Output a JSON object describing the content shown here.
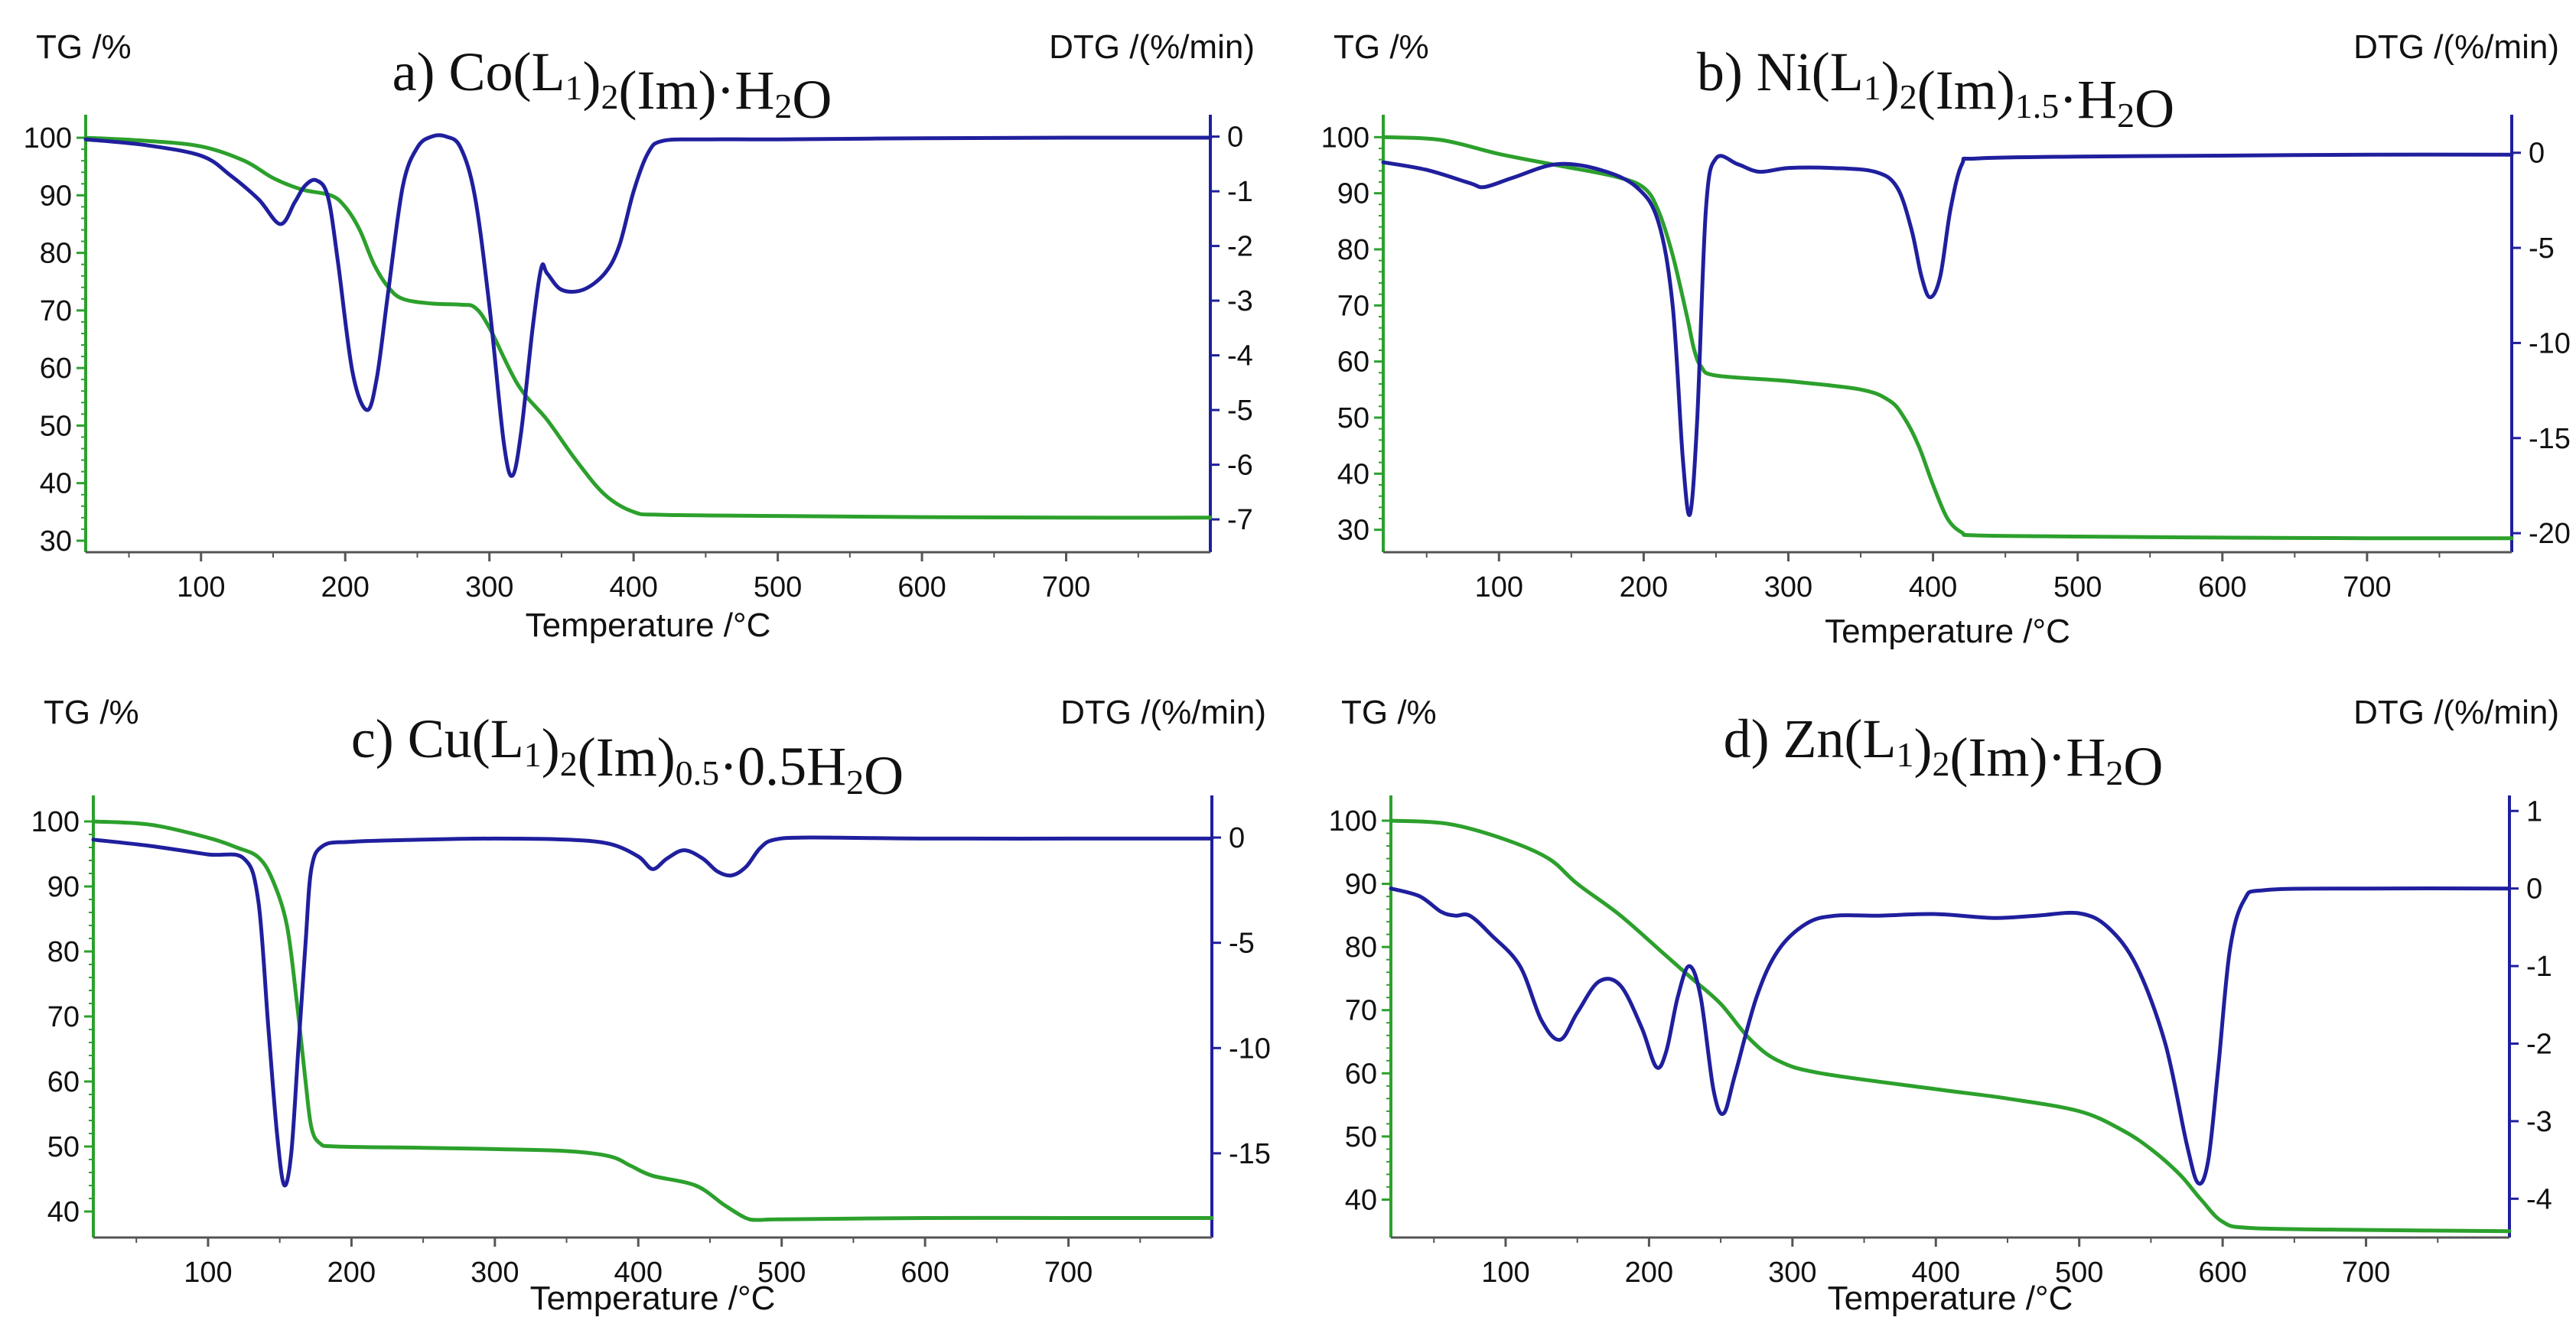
{
  "figure": {
    "type": "TG/DTG thermograms",
    "colors": {
      "tg": "#2ca02c",
      "dtg": "#1f1f9e",
      "left_axis": "#2ca02c",
      "right_axis": "#1f1f9e",
      "text": "#111111"
    }
  },
  "chart_data": [
    {
      "type": "line",
      "id": "a",
      "title_parts": [
        {
          "t": "a) Co(L"
        },
        {
          "t": "1",
          "sub": true
        },
        {
          "t": ")"
        },
        {
          "t": "2",
          "sub": true
        },
        {
          "t": "(Im)·H"
        },
        {
          "t": "2",
          "sub": true
        },
        {
          "t": "O"
        }
      ],
      "title": "a) Co(L1)2(Im)·H2O",
      "ylabel_left": "TG /%",
      "ylabel_right": "DTG /(%/min)",
      "xlabel": "Temperature /°C",
      "xlim": [
        20,
        800
      ],
      "xticks": [
        100,
        200,
        300,
        400,
        500,
        600,
        700
      ],
      "ylim_left": [
        28,
        104
      ],
      "yticks_left": [
        30,
        40,
        50,
        60,
        70,
        80,
        90,
        100
      ],
      "ylim_right": [
        -7.6,
        0.4
      ],
      "yticks_right": [
        0,
        -1,
        -2,
        -3,
        -4,
        -5,
        -6,
        -7
      ],
      "series": [
        {
          "name": "TG",
          "axis": "left",
          "color": "#2ca02c",
          "x": [
            20,
            60,
            100,
            130,
            150,
            170,
            190,
            200,
            210,
            220,
            230,
            240,
            260,
            280,
            290,
            300,
            320,
            340,
            360,
            380,
            400,
            420,
            500,
            600,
            700,
            800
          ],
          "y": [
            100,
            99.5,
            98.5,
            96,
            93,
            91,
            90,
            88,
            84,
            78,
            74,
            72,
            71.2,
            71,
            70.5,
            67,
            57,
            51,
            44,
            38,
            35,
            34.5,
            34.3,
            34.1,
            34,
            34
          ]
        },
        {
          "name": "DTG",
          "axis": "right",
          "color": "#1f1f9e",
          "x": [
            20,
            60,
            100,
            120,
            140,
            155,
            165,
            172,
            180,
            188,
            195,
            205,
            215,
            222,
            230,
            240,
            250,
            260,
            270,
            280,
            290,
            300,
            310,
            316,
            322,
            330,
            336,
            340,
            350,
            365,
            380,
            390,
            400,
            410,
            420,
            450,
            500,
            600,
            700,
            800
          ],
          "y": [
            -0.05,
            -0.15,
            -0.35,
            -0.7,
            -1.15,
            -1.6,
            -1.2,
            -0.9,
            -0.8,
            -1.1,
            -2.3,
            -4.3,
            -5.0,
            -4.4,
            -2.8,
            -0.9,
            -0.2,
            0.0,
            0.0,
            -0.2,
            -1.1,
            -3.1,
            -5.6,
            -6.2,
            -5.4,
            -3.5,
            -2.4,
            -2.5,
            -2.8,
            -2.8,
            -2.5,
            -2.0,
            -1.0,
            -0.3,
            -0.08,
            -0.05,
            -0.05,
            -0.03,
            -0.02,
            -0.02
          ]
        }
      ]
    },
    {
      "type": "line",
      "id": "b",
      "title_parts": [
        {
          "t": "b) Ni(L"
        },
        {
          "t": "1",
          "sub": true
        },
        {
          "t": ")"
        },
        {
          "t": "2",
          "sub": true
        },
        {
          "t": "(Im)"
        },
        {
          "t": "1.5",
          "sub": true
        },
        {
          "t": "·H"
        },
        {
          "t": "2",
          "sub": true
        },
        {
          "t": "O"
        }
      ],
      "title": "b) Ni(L1)2(Im)1.5·H2O",
      "ylabel_left": "TG /%",
      "ylabel_right": "DTG /(%/min)",
      "xlabel": "Temperature /°C",
      "xlim": [
        20,
        800
      ],
      "xticks": [
        100,
        200,
        300,
        400,
        500,
        600,
        700
      ],
      "ylim_left": [
        26,
        104
      ],
      "yticks_left": [
        30,
        40,
        50,
        60,
        70,
        80,
        90,
        100
      ],
      "ylim_right": [
        -21,
        2
      ],
      "yticks_right": [
        0,
        -5,
        -10,
        -15,
        -20
      ],
      "series": [
        {
          "name": "TG",
          "axis": "left",
          "color": "#2ca02c",
          "x": [
            20,
            60,
            100,
            140,
            180,
            200,
            210,
            220,
            230,
            235,
            240,
            250,
            300,
            350,
            370,
            380,
            390,
            400,
            410,
            420,
            430,
            500,
            600,
            700,
            800
          ],
          "y": [
            100,
            99.5,
            97,
            95,
            93,
            91,
            87,
            79,
            68,
            62,
            59,
            57.5,
            56.5,
            55,
            53,
            50,
            45,
            38,
            32,
            29.5,
            29,
            28.8,
            28.6,
            28.5,
            28.5
          ]
        },
        {
          "name": "DTG",
          "axis": "right",
          "color": "#1f1f9e",
          "x": [
            20,
            50,
            80,
            90,
            110,
            140,
            170,
            195,
            210,
            220,
            227,
            232,
            237,
            243,
            250,
            265,
            280,
            300,
            330,
            360,
            375,
            385,
            392,
            398,
            405,
            412,
            420,
            430,
            500,
            600,
            700,
            800
          ],
          "y": [
            -0.5,
            -0.9,
            -1.6,
            -1.8,
            -1.3,
            -0.6,
            -0.9,
            -1.8,
            -3.6,
            -8.0,
            -16.0,
            -19.0,
            -14.0,
            -3.0,
            -0.3,
            -0.6,
            -1.0,
            -0.8,
            -0.8,
            -1.0,
            -1.8,
            -4.0,
            -6.5,
            -7.6,
            -6.5,
            -3.0,
            -0.6,
            -0.3,
            -0.2,
            -0.15,
            -0.1,
            -0.1
          ]
        }
      ]
    },
    {
      "type": "line",
      "id": "c",
      "title_parts": [
        {
          "t": "c) Cu(L"
        },
        {
          "t": "1",
          "sub": true
        },
        {
          "t": ")"
        },
        {
          "t": "2",
          "sub": true
        },
        {
          "t": "(Im)"
        },
        {
          "t": "0.5",
          "sub": true
        },
        {
          "t": "·0.5H"
        },
        {
          "t": "2",
          "sub": true
        },
        {
          "t": "O"
        }
      ],
      "title": "c) Cu(L1)2(Im)0.5·0.5H2O",
      "ylabel_left": "TG /%",
      "ylabel_right": "DTG /(%/min)",
      "xlabel": "Temperature /°C",
      "xlim": [
        20,
        800
      ],
      "xticks": [
        100,
        200,
        300,
        400,
        500,
        600,
        700
      ],
      "ylim_left": [
        36,
        104
      ],
      "yticks_left": [
        40,
        50,
        60,
        70,
        80,
        90,
        100
      ],
      "ylim_right": [
        -19,
        2
      ],
      "yticks_right": [
        0,
        -5,
        -10,
        -15
      ],
      "series": [
        {
          "name": "TG",
          "axis": "left",
          "color": "#2ca02c",
          "x": [
            20,
            60,
            100,
            120,
            135,
            145,
            155,
            162,
            168,
            172,
            178,
            190,
            250,
            300,
            350,
            380,
            395,
            410,
            440,
            460,
            475,
            485,
            500,
            600,
            700,
            800
          ],
          "y": [
            100,
            99.5,
            97.5,
            96,
            94.5,
            91,
            84,
            72,
            60,
            53,
            50.5,
            50,
            49.8,
            49.6,
            49.3,
            48.5,
            47,
            45.5,
            44,
            41,
            39,
            38.7,
            38.8,
            39,
            39,
            39
          ]
        },
        {
          "name": "DTG",
          "axis": "right",
          "color": "#1f1f9e",
          "x": [
            20,
            60,
            100,
            125,
            135,
            142,
            148,
            153,
            158,
            163,
            168,
            172,
            180,
            200,
            250,
            300,
            350,
            380,
            400,
            410,
            420,
            432,
            445,
            455,
            465,
            475,
            485,
            495,
            520,
            600,
            700,
            800
          ],
          "y": [
            -0.1,
            -0.4,
            -0.8,
            -1.0,
            -3.0,
            -9.0,
            -14.0,
            -16.5,
            -15.0,
            -10.0,
            -5.0,
            -1.5,
            -0.4,
            -0.2,
            -0.1,
            -0.05,
            -0.1,
            -0.3,
            -0.9,
            -1.5,
            -1.0,
            -0.6,
            -1.0,
            -1.6,
            -1.8,
            -1.4,
            -0.5,
            -0.1,
            0.0,
            -0.05,
            -0.05,
            -0.05
          ]
        }
      ]
    },
    {
      "type": "line",
      "id": "d",
      "title_parts": [
        {
          "t": "d) Zn(L"
        },
        {
          "t": "1",
          "sub": true
        },
        {
          "t": ")"
        },
        {
          "t": "2",
          "sub": true
        },
        {
          "t": "(Im)·H"
        },
        {
          "t": "2",
          "sub": true
        },
        {
          "t": "O"
        }
      ],
      "title": "d) Zn(L1)2(Im)·H2O",
      "ylabel_left": "TG /%",
      "ylabel_right": "DTG /(%/min)",
      "xlabel": "Temperature /°C",
      "xlim": [
        20,
        800
      ],
      "xticks": [
        100,
        200,
        300,
        400,
        500,
        600,
        700
      ],
      "ylim_left": [
        34,
        104
      ],
      "yticks_left": [
        40,
        50,
        60,
        70,
        80,
        90,
        100
      ],
      "ylim_right": [
        -4.5,
        1.2
      ],
      "yticks_right": [
        1,
        0,
        -1,
        -2,
        -3,
        -4
      ],
      "series": [
        {
          "name": "TG",
          "axis": "left",
          "color": "#2ca02c",
          "x": [
            20,
            60,
            100,
            130,
            150,
            180,
            210,
            230,
            250,
            270,
            290,
            320,
            400,
            450,
            500,
            530,
            550,
            570,
            585,
            600,
            620,
            700,
            800
          ],
          "y": [
            100,
            99.5,
            97,
            94,
            90,
            85,
            79,
            75,
            71,
            65.5,
            62,
            60,
            57.5,
            56,
            54,
            51,
            48,
            44,
            40,
            36.5,
            35.5,
            35.2,
            35
          ]
        },
        {
          "name": "DTG",
          "axis": "right",
          "color": "#1f1f9e",
          "x": [
            20,
            40,
            55,
            65,
            75,
            90,
            110,
            125,
            138,
            150,
            165,
            180,
            195,
            205,
            212,
            220,
            228,
            236,
            245,
            252,
            260,
            275,
            290,
            310,
            330,
            360,
            400,
            440,
            470,
            500,
            520,
            540,
            560,
            575,
            583,
            590,
            597,
            605,
            615,
            630,
            700,
            800
          ],
          "y": [
            0.0,
            -0.1,
            -0.3,
            -0.35,
            -0.35,
            -0.6,
            -1.0,
            -1.7,
            -1.95,
            -1.6,
            -1.2,
            -1.25,
            -1.8,
            -2.3,
            -2.1,
            -1.4,
            -1.0,
            -1.4,
            -2.6,
            -2.9,
            -2.4,
            -1.4,
            -0.8,
            -0.45,
            -0.35,
            -0.35,
            -0.33,
            -0.38,
            -0.35,
            -0.32,
            -0.5,
            -1.0,
            -2.0,
            -3.3,
            -3.8,
            -3.5,
            -2.3,
            -0.8,
            -0.15,
            -0.02,
            0.0,
            0.0
          ]
        }
      ]
    }
  ]
}
